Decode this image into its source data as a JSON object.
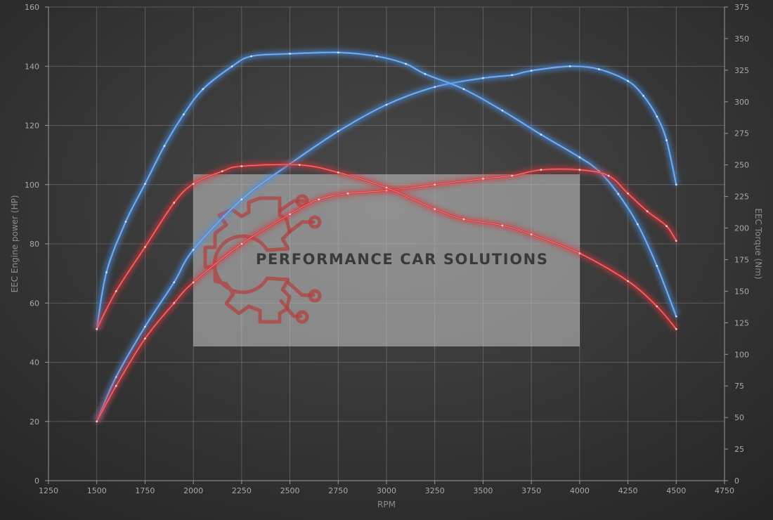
{
  "chart_data": {
    "type": "line",
    "title": "",
    "xlabel": "RPM",
    "ylabel_left": "EEC Engine power (HP)",
    "ylabel_right": "EEC Torque (Nm)",
    "xlim": [
      1250,
      4750
    ],
    "ylim_left": [
      0,
      160
    ],
    "ylim_right": [
      0,
      375
    ],
    "x_ticks": [
      1250,
      1500,
      1750,
      2000,
      2250,
      2500,
      2750,
      3000,
      3250,
      3500,
      3750,
      4000,
      4250,
      4500,
      4750
    ],
    "y_left_ticks": [
      0,
      20,
      40,
      60,
      80,
      100,
      120,
      140,
      160
    ],
    "y_right_ticks": [
      0,
      25,
      50,
      75,
      100,
      125,
      150,
      175,
      200,
      225,
      250,
      275,
      300,
      325,
      350,
      375
    ],
    "grid": true,
    "series": [
      {
        "axis": "left",
        "color": "#4a90e2",
        "points": [
          [
            1500,
            20
          ],
          [
            1600,
            35
          ],
          [
            1750,
            52
          ],
          [
            1900,
            67
          ],
          [
            2000,
            78
          ],
          [
            2250,
            95
          ],
          [
            2500,
            107
          ],
          [
            2750,
            118
          ],
          [
            3000,
            127
          ],
          [
            3250,
            133
          ],
          [
            3500,
            136
          ],
          [
            3650,
            137
          ],
          [
            3750,
            138.5
          ],
          [
            3950,
            140
          ],
          [
            4100,
            139
          ],
          [
            4250,
            135
          ],
          [
            4330,
            130
          ],
          [
            4400,
            123
          ],
          [
            4450,
            115
          ],
          [
            4500,
            100
          ]
        ]
      },
      {
        "axis": "right",
        "color": "#4a90e2",
        "points": [
          [
            1500,
            120
          ],
          [
            1550,
            165
          ],
          [
            1650,
            205
          ],
          [
            1750,
            235
          ],
          [
            1850,
            265
          ],
          [
            1950,
            290
          ],
          [
            2050,
            310
          ],
          [
            2200,
            328
          ],
          [
            2300,
            336
          ],
          [
            2500,
            338
          ],
          [
            2750,
            339
          ],
          [
            2950,
            336
          ],
          [
            3100,
            330
          ],
          [
            3200,
            322
          ],
          [
            3400,
            310
          ],
          [
            3600,
            293
          ],
          [
            3800,
            274
          ],
          [
            4000,
            256
          ],
          [
            4100,
            245
          ],
          [
            4200,
            227
          ],
          [
            4300,
            203
          ],
          [
            4400,
            170
          ],
          [
            4500,
            130
          ]
        ]
      },
      {
        "axis": "left",
        "color": "#d9343a",
        "points": [
          [
            1500,
            20
          ],
          [
            1600,
            32
          ],
          [
            1750,
            48
          ],
          [
            1900,
            60
          ],
          [
            2000,
            67
          ],
          [
            2250,
            80
          ],
          [
            2500,
            90
          ],
          [
            2650,
            95
          ],
          [
            2800,
            97
          ],
          [
            3000,
            98
          ],
          [
            3250,
            100
          ],
          [
            3500,
            102
          ],
          [
            3650,
            103
          ],
          [
            3800,
            105
          ],
          [
            4000,
            105
          ],
          [
            4150,
            103
          ],
          [
            4250,
            97
          ],
          [
            4350,
            91
          ],
          [
            4450,
            86
          ],
          [
            4500,
            81
          ]
        ]
      },
      {
        "axis": "right",
        "color": "#d9343a",
        "points": [
          [
            1500,
            120
          ],
          [
            1600,
            150
          ],
          [
            1750,
            185
          ],
          [
            1900,
            220
          ],
          [
            2000,
            235
          ],
          [
            2150,
            245
          ],
          [
            2250,
            249
          ],
          [
            2550,
            250
          ],
          [
            2750,
            244
          ],
          [
            3000,
            232
          ],
          [
            3250,
            215
          ],
          [
            3400,
            207
          ],
          [
            3600,
            202
          ],
          [
            3750,
            195
          ],
          [
            4000,
            180
          ],
          [
            4250,
            158
          ],
          [
            4400,
            138
          ],
          [
            4500,
            120
          ]
        ]
      }
    ]
  },
  "watermark": {
    "text": "PERFORMANCE CAR SOLUTIONS"
  }
}
